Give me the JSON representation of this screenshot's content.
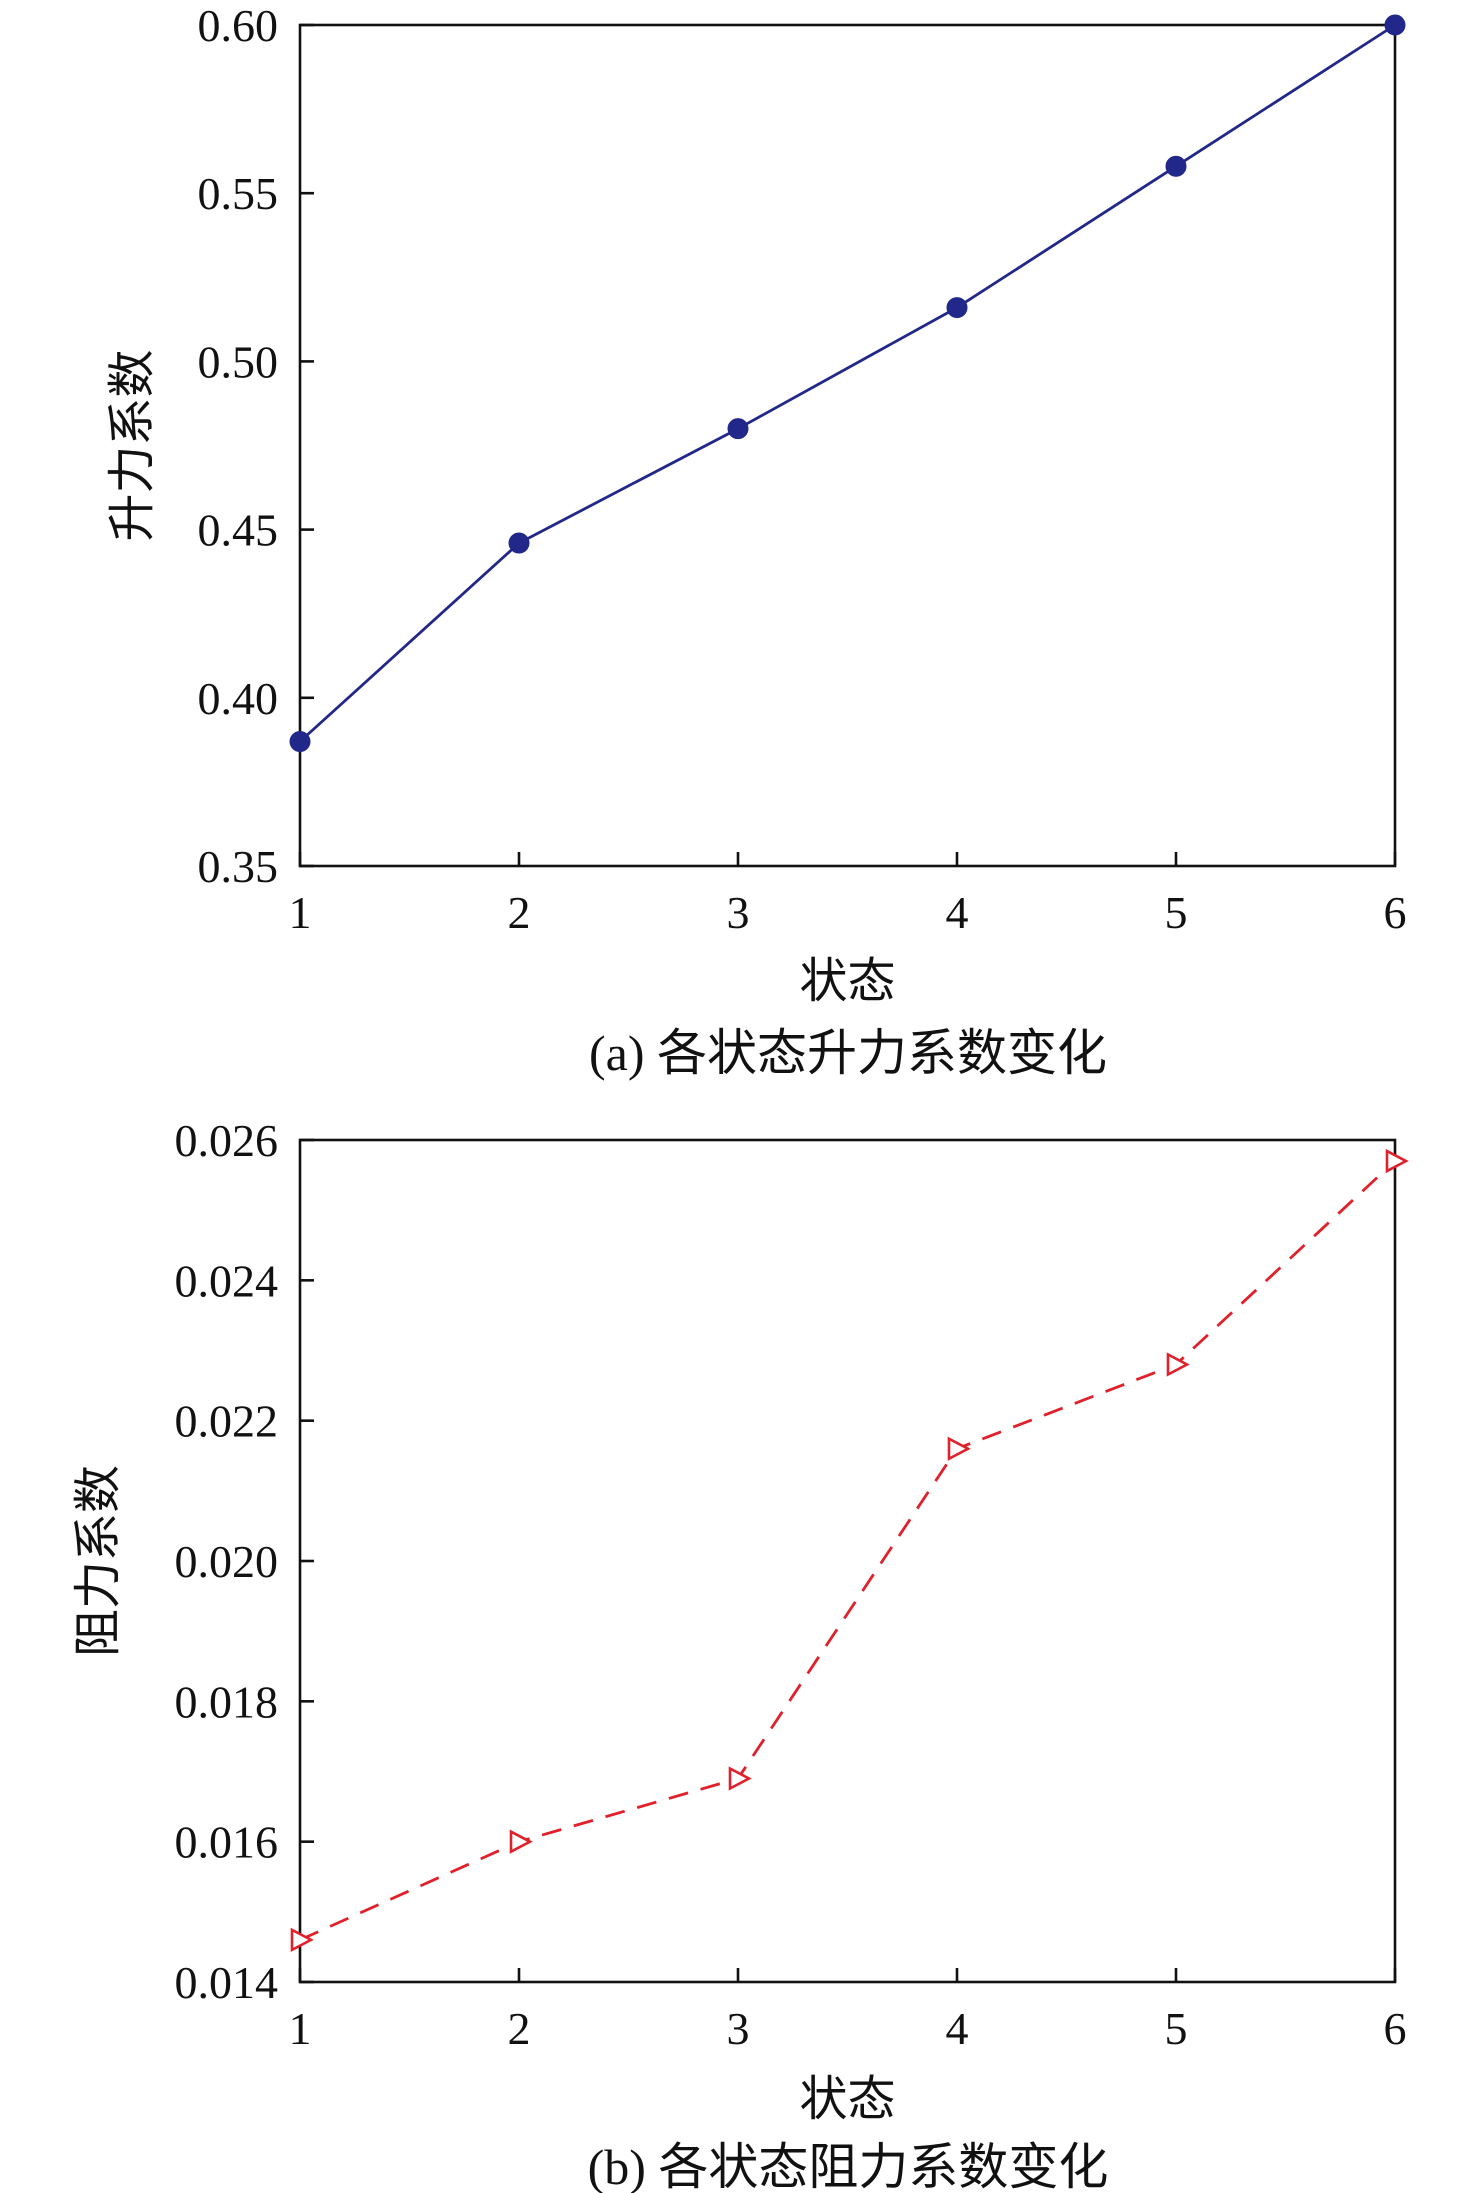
{
  "chart_data": [
    {
      "type": "line",
      "caption": "(a) 各状态升力系数变化",
      "xlabel": "状态",
      "ylabel": "升力系数",
      "x": [
        1,
        2,
        3,
        4,
        5,
        6
      ],
      "xticks": [
        "1",
        "2",
        "3",
        "4",
        "5",
        "6"
      ],
      "xlim": [
        1,
        6
      ],
      "ylim": [
        0.35,
        0.6
      ],
      "yticks": [
        "0.35",
        "0.40",
        "0.45",
        "0.50",
        "0.55",
        "0.60"
      ],
      "grid": false,
      "series": [
        {
          "values": [
            0.387,
            0.446,
            0.48,
            0.516,
            0.558,
            0.6
          ],
          "color": "#22288a",
          "line_style": "solid",
          "marker": "filled-circle"
        }
      ]
    },
    {
      "type": "line",
      "caption": "(b) 各状态阻力系数变化",
      "xlabel": "状态",
      "ylabel": "阻力系数",
      "x": [
        1,
        2,
        3,
        4,
        5,
        6
      ],
      "xticks": [
        "1",
        "2",
        "3",
        "4",
        "5",
        "6"
      ],
      "xlim": [
        1,
        6
      ],
      "ylim": [
        0.014,
        0.026
      ],
      "yticks": [
        "0.014",
        "0.016",
        "0.018",
        "0.020",
        "0.022",
        "0.024",
        "0.026"
      ],
      "grid": false,
      "series": [
        {
          "values": [
            0.0146,
            0.016,
            0.0169,
            0.0216,
            0.0228,
            0.0257
          ],
          "color": "#e0202a",
          "line_style": "dashed",
          "marker": "open-triangle-right"
        }
      ]
    }
  ]
}
